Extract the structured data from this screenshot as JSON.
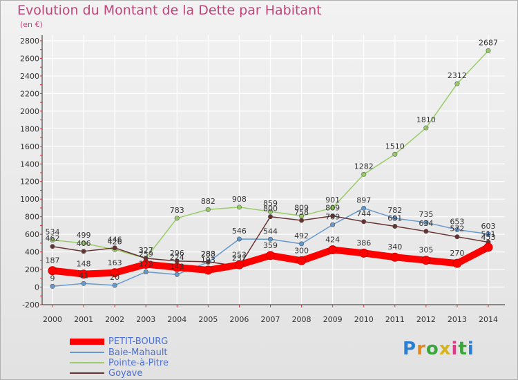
{
  "title": "Evolution du Montant de la Dette par Habitant",
  "subtitle": "(en €)",
  "logo": "Proxiti",
  "chart_data": {
    "type": "line",
    "title": "Evolution du Montant de la Dette par Habitant",
    "ylabel": "(en €)",
    "x": [
      "2000",
      "2001",
      "2002",
      "2003",
      "2004",
      "2005",
      "2006",
      "2007",
      "2008",
      "2009",
      "2010",
      "2011",
      "2012",
      "2013",
      "2014"
    ],
    "ylim": [
      -200,
      2800
    ],
    "yticks": [
      "-200",
      "0",
      "200",
      "400",
      "600",
      "800",
      "1000",
      "1200",
      "1400",
      "1600",
      "1800",
      "2000",
      "2200",
      "2400",
      "2600",
      "2800"
    ],
    "grid": true,
    "legend_position": "bottom-left",
    "series": [
      {
        "name": "PETIT-BOURG",
        "color": "#ff0000",
        "values": [
          187,
          148,
          163,
          259,
          224,
          193,
          253,
          359,
          300,
          424,
          386,
          340,
          305,
          270,
          453
        ]
      },
      {
        "name": "Baie-Mahault",
        "color": "#6699cc",
        "values": [
          9,
          41,
          20,
          173,
          143,
          283,
          546,
          544,
          492,
          709,
          897,
          782,
          735,
          653,
          603
        ]
      },
      {
        "name": "Pointe-à-Pitre",
        "color": "#99cc66",
        "values": [
          534,
          499,
          426,
          327,
          783,
          882,
          908,
          859,
          809,
          901,
          1282,
          1510,
          1810,
          2312,
          2687
        ]
      },
      {
        "name": "Goyave",
        "color": "#663333",
        "values": [
          462,
          406,
          446,
          327,
          296,
          288,
          237,
          800,
          758,
          809,
          744,
          691,
          634,
          572,
          511
        ]
      }
    ]
  }
}
